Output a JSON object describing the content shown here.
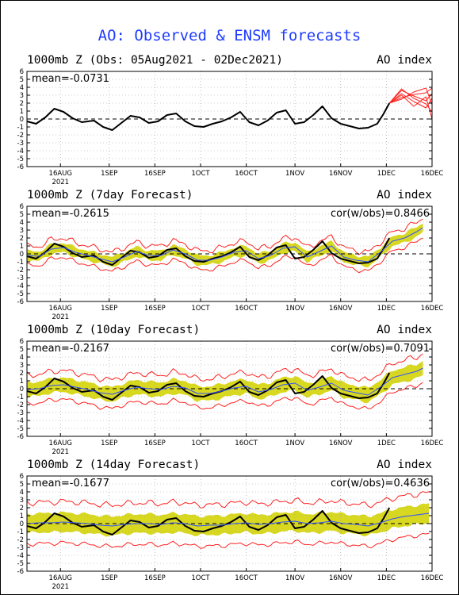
{
  "title": "AO: Observed & ENSM forecasts",
  "colors": {
    "title": "#1f3cff",
    "observed": "#000000",
    "ensemble_member": "#ff2020",
    "ensemble_mean": "#3050ff",
    "spread": "#d8d820"
  },
  "axis": {
    "x_ticks": [
      "16AUG",
      "1SEP",
      "16SEP",
      "1OCT",
      "16OCT",
      "1NOV",
      "16NOV",
      "1DEC",
      "16DEC"
    ],
    "x_year": "2021",
    "y_ticks": [
      "6",
      "5",
      "4",
      "3",
      "2",
      "1",
      "0",
      "-1",
      "-2",
      "-3",
      "-4",
      "-5",
      "-6"
    ]
  },
  "chart_data": [
    {
      "type": "line",
      "title": "1000mb Z (Obs: 05Aug2021 - 02Dec2021)",
      "index_label": "AO index",
      "mean_label": "mean=-0.0731",
      "cor_label": "",
      "ylim": [
        -6,
        6
      ],
      "xlim_days": [
        0,
        133
      ],
      "series": [
        {
          "role": "observed",
          "x": [
            0,
            3,
            6,
            9,
            12,
            15,
            18,
            22,
            25,
            28,
            31,
            34,
            37,
            40,
            43,
            46,
            49,
            52,
            55,
            58,
            61,
            64,
            67,
            70,
            73,
            76,
            79,
            82,
            85,
            88,
            91,
            94,
            97,
            100,
            103,
            106,
            109,
            112,
            115,
            117,
            119
          ],
          "values": [
            -0.3,
            -0.6,
            0.2,
            1.3,
            0.9,
            0.1,
            -0.4,
            -0.2,
            -1.0,
            -1.4,
            -0.5,
            0.4,
            0.2,
            -0.5,
            -0.3,
            0.5,
            0.7,
            -0.3,
            -0.9,
            -1.0,
            -0.6,
            -0.3,
            0.2,
            0.9,
            -0.4,
            -0.8,
            -0.2,
            0.8,
            1.1,
            -0.6,
            -0.4,
            0.5,
            1.6,
            0.1,
            -0.6,
            -0.9,
            -1.2,
            -1.1,
            -0.6,
            0.6,
            2.0
          ]
        },
        {
          "role": "ensemble_member",
          "x": [
            119,
            123,
            127,
            131,
            133
          ],
          "values": [
            2.0,
            3.6,
            2.9,
            2.3,
            3.2
          ]
        },
        {
          "role": "ensemble_member",
          "x": [
            119,
            123,
            127,
            131,
            133
          ],
          "values": [
            2.0,
            3.0,
            1.6,
            2.8,
            0.0
          ]
        },
        {
          "role": "ensemble_member",
          "x": [
            119,
            123,
            127,
            131,
            133
          ],
          "values": [
            2.0,
            2.5,
            3.4,
            3.9,
            1.8
          ]
        },
        {
          "role": "ensemble_member",
          "x": [
            119,
            123,
            127,
            131,
            133
          ],
          "values": [
            2.0,
            3.2,
            2.2,
            1.4,
            2.6
          ]
        },
        {
          "role": "ensemble_member",
          "x": [
            119,
            123,
            127,
            131,
            133
          ],
          "values": [
            2.0,
            2.7,
            3.1,
            3.3,
            3.9
          ]
        },
        {
          "role": "ensemble_member",
          "x": [
            119,
            123,
            127,
            131,
            133
          ],
          "values": [
            2.0,
            3.8,
            2.6,
            1.9,
            0.9
          ]
        }
      ]
    },
    {
      "type": "line",
      "title": "1000mb Z (7day Forecast)",
      "index_label": "AO index",
      "mean_label": "mean=-0.2615",
      "cor_label": "cor(w/obs)=0.8466",
      "ylim": [
        -6,
        6
      ],
      "xlim_days": [
        0,
        133
      ],
      "spread": 0.6,
      "member_spread": 1.2,
      "series": [
        {
          "role": "observed",
          "x": [
            0,
            3,
            6,
            9,
            12,
            15,
            18,
            22,
            25,
            28,
            31,
            34,
            37,
            40,
            43,
            46,
            49,
            52,
            55,
            58,
            61,
            64,
            67,
            70,
            73,
            76,
            79,
            82,
            85,
            88,
            91,
            94,
            97,
            100,
            103,
            106,
            109,
            112,
            115,
            117,
            119
          ],
          "values": [
            -0.3,
            -0.6,
            0.2,
            1.3,
            0.9,
            0.1,
            -0.4,
            -0.2,
            -1.0,
            -1.4,
            -0.5,
            0.4,
            0.2,
            -0.5,
            -0.3,
            0.5,
            0.7,
            -0.3,
            -0.9,
            -1.0,
            -0.6,
            -0.3,
            0.2,
            0.9,
            -0.4,
            -0.8,
            -0.2,
            0.8,
            1.1,
            -0.6,
            -0.4,
            0.5,
            1.6,
            0.1,
            -0.6,
            -0.9,
            -1.2,
            -1.1,
            -0.6,
            0.6,
            2.0
          ]
        },
        {
          "role": "ensemble_mean",
          "x": [
            0,
            4,
            8,
            12,
            16,
            20,
            24,
            28,
            32,
            36,
            40,
            44,
            48,
            52,
            56,
            60,
            64,
            68,
            72,
            76,
            80,
            84,
            88,
            92,
            96,
            100,
            104,
            108,
            112,
            116,
            120,
            124,
            128,
            130
          ],
          "values": [
            -0.2,
            -0.3,
            0.6,
            0.8,
            0.2,
            -0.2,
            -0.6,
            -1.0,
            -0.4,
            0.3,
            -0.2,
            -0.2,
            0.5,
            0.0,
            -0.8,
            -0.8,
            -0.4,
            0.2,
            0.4,
            -0.6,
            -0.2,
            0.7,
            0.9,
            -0.4,
            0.3,
            1.0,
            -0.4,
            -0.8,
            -1.0,
            0.2,
            1.6,
            2.0,
            2.8,
            3.3
          ]
        }
      ]
    },
    {
      "type": "line",
      "title": "1000mb Z (10day Forecast)",
      "index_label": "AO index",
      "mean_label": "mean=-0.2167",
      "cor_label": "cor(w/obs)=0.7091",
      "ylim": [
        -6,
        6
      ],
      "xlim_days": [
        0,
        133
      ],
      "spread": 0.9,
      "member_spread": 1.8,
      "series": [
        {
          "role": "observed",
          "x": [
            0,
            3,
            6,
            9,
            12,
            15,
            18,
            22,
            25,
            28,
            31,
            34,
            37,
            40,
            43,
            46,
            49,
            52,
            55,
            58,
            61,
            64,
            67,
            70,
            73,
            76,
            79,
            82,
            85,
            88,
            91,
            94,
            97,
            100,
            103,
            106,
            109,
            112,
            115,
            117,
            119
          ],
          "values": [
            -0.3,
            -0.6,
            0.2,
            1.3,
            0.9,
            0.1,
            -0.4,
            -0.2,
            -1.0,
            -1.4,
            -0.5,
            0.4,
            0.2,
            -0.5,
            -0.3,
            0.5,
            0.7,
            -0.3,
            -0.9,
            -1.0,
            -0.6,
            -0.3,
            0.2,
            0.9,
            -0.4,
            -0.8,
            -0.2,
            0.8,
            1.1,
            -0.6,
            -0.4,
            0.5,
            1.6,
            0.1,
            -0.6,
            -0.9,
            -1.2,
            -1.1,
            -0.6,
            0.6,
            2.0
          ]
        },
        {
          "role": "ensemble_mean",
          "x": [
            0,
            4,
            8,
            12,
            16,
            20,
            24,
            28,
            32,
            36,
            40,
            44,
            48,
            52,
            56,
            60,
            64,
            68,
            72,
            76,
            80,
            84,
            88,
            92,
            96,
            100,
            104,
            108,
            112,
            116,
            120,
            124,
            128,
            130
          ],
          "values": [
            -0.1,
            0.0,
            0.4,
            0.5,
            0.2,
            -0.1,
            -0.5,
            -0.7,
            -0.2,
            0.2,
            0.0,
            -0.1,
            0.3,
            0.1,
            -0.6,
            -0.6,
            -0.3,
            0.1,
            0.3,
            -0.4,
            -0.1,
            0.5,
            0.7,
            -0.2,
            0.2,
            0.7,
            -0.2,
            -0.5,
            -0.8,
            0.2,
            1.4,
            1.8,
            2.2,
            2.6
          ]
        }
      ]
    },
    {
      "type": "line",
      "title": "1000mb Z (14day Forecast)",
      "index_label": "AO index",
      "mean_label": "mean=-0.1677",
      "cor_label": "cor(w/obs)=0.4636",
      "ylim": [
        -6,
        6
      ],
      "xlim_days": [
        0,
        133
      ],
      "spread": 1.2,
      "member_spread": 2.6,
      "series": [
        {
          "role": "observed",
          "x": [
            0,
            3,
            6,
            9,
            12,
            15,
            18,
            22,
            25,
            28,
            31,
            34,
            37,
            40,
            43,
            46,
            49,
            52,
            55,
            58,
            61,
            64,
            67,
            70,
            73,
            76,
            79,
            82,
            85,
            88,
            91,
            94,
            97,
            100,
            103,
            106,
            109,
            112,
            115,
            117,
            119
          ],
          "values": [
            -0.3,
            -0.6,
            0.2,
            1.3,
            0.9,
            0.1,
            -0.4,
            -0.2,
            -1.0,
            -1.4,
            -0.5,
            0.4,
            0.2,
            -0.5,
            -0.3,
            0.5,
            0.7,
            -0.3,
            -0.9,
            -1.0,
            -0.6,
            -0.3,
            0.2,
            0.9,
            -0.4,
            -0.8,
            -0.2,
            0.8,
            1.1,
            -0.6,
            -0.4,
            0.5,
            1.6,
            0.1,
            -0.6,
            -0.9,
            -1.2,
            -1.1,
            -0.6,
            0.6,
            2.0
          ]
        },
        {
          "role": "ensemble_mean",
          "x": [
            0,
            4,
            8,
            12,
            16,
            20,
            24,
            28,
            32,
            36,
            40,
            44,
            48,
            52,
            56,
            60,
            64,
            68,
            72,
            76,
            80,
            84,
            88,
            92,
            96,
            100,
            104,
            108,
            112,
            116,
            120,
            124,
            128,
            132
          ],
          "values": [
            0.0,
            0.1,
            0.1,
            0.2,
            0.1,
            0.0,
            -0.2,
            -0.3,
            -0.1,
            0.0,
            0.0,
            -0.1,
            0.1,
            0.0,
            -0.3,
            -0.2,
            -0.2,
            0.0,
            0.1,
            -0.1,
            0.0,
            0.2,
            0.3,
            0.0,
            0.1,
            0.3,
            0.0,
            -0.1,
            -0.3,
            0.1,
            0.6,
            0.9,
            1.1,
            1.3
          ]
        }
      ]
    }
  ]
}
